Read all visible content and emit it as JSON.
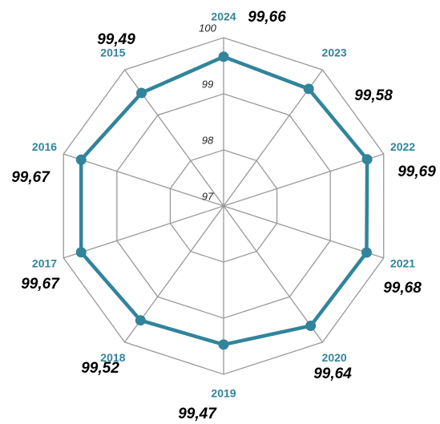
{
  "chart_data": {
    "type": "radar",
    "categories": [
      "2024",
      "2023",
      "2022",
      "2021",
      "2020",
      "2019",
      "2018",
      "2017",
      "2016",
      "2015"
    ],
    "series": [
      {
        "color": "#31849b",
        "values": [
          99.66,
          99.58,
          99.69,
          99.68,
          99.64,
          99.47,
          99.52,
          99.67,
          99.67,
          99.49
        ],
        "value_labels": [
          "99,66",
          "99,58",
          "99,69",
          "99,68",
          "99,64",
          "99,47",
          "99,52",
          "99,67",
          "99,67",
          "99,49"
        ]
      }
    ],
    "ylim": [
      97,
      100
    ],
    "yticks": [
      97,
      98,
      99,
      100
    ],
    "grid": true
  }
}
